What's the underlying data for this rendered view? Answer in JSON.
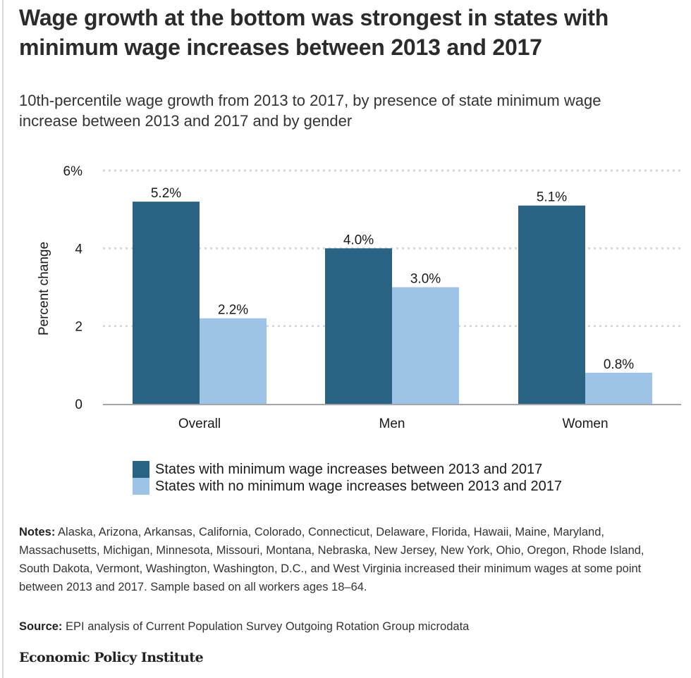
{
  "title": "Wage growth at the bottom was strongest in states with minimum wage increases between 2013 and 2017",
  "subtitle": "10th-percentile wage growth from 2013 to 2017, by presence of state minimum wage increase between 2013 and 2017 and by gender",
  "colors": {
    "with_increase": "#2a6283",
    "no_increase": "#9dc3e6",
    "grid": "#d9d9d9",
    "baseline": "#a6a6a6"
  },
  "chart_data": {
    "type": "bar",
    "title": "Wage growth at the bottom was strongest in states with minimum wage increases between 2013 and 2017",
    "xlabel": "",
    "ylabel": "Percent change",
    "ylim": [
      0,
      6
    ],
    "yticks": [
      {
        "value": 0,
        "label": "0"
      },
      {
        "value": 2,
        "label": "2"
      },
      {
        "value": 4,
        "label": "4"
      },
      {
        "value": 6,
        "label": "6%"
      }
    ],
    "grid": true,
    "categories": [
      "Overall",
      "Men",
      "Women"
    ],
    "series": [
      {
        "name": "States with minimum wage increases between 2013 and 2017",
        "values": [
          5.2,
          4.0,
          5.1
        ],
        "labels": [
          "5.2%",
          "4.0%",
          "5.1%"
        ]
      },
      {
        "name": "States with no minimum wage increases between 2013 and 2017",
        "values": [
          2.2,
          3.0,
          0.8
        ],
        "labels": [
          "2.2%",
          "3.0%",
          "0.8%"
        ]
      }
    ],
    "legend_position": "bottom"
  },
  "notes": {
    "label": "Notes:",
    "text": " Alaska, Arizona, Arkansas, California, Colorado, Connecticut, Delaware, Florida, Hawaii, Maine, Maryland, Massachusetts, Michigan, Minnesota, Missouri, Montana, Nebraska, New Jersey, New York, Ohio, Oregon, Rhode Island, South Dakota, Vermont, Washington, Washington, D.C., and West Virginia increased their minimum wages at some point between 2013 and 2017. Sample based on all workers ages 18–64."
  },
  "source": {
    "label": "Source:",
    "text": " EPI analysis of Current Population Survey Outgoing Rotation Group microdata"
  },
  "logo": "Economic Policy Institute"
}
